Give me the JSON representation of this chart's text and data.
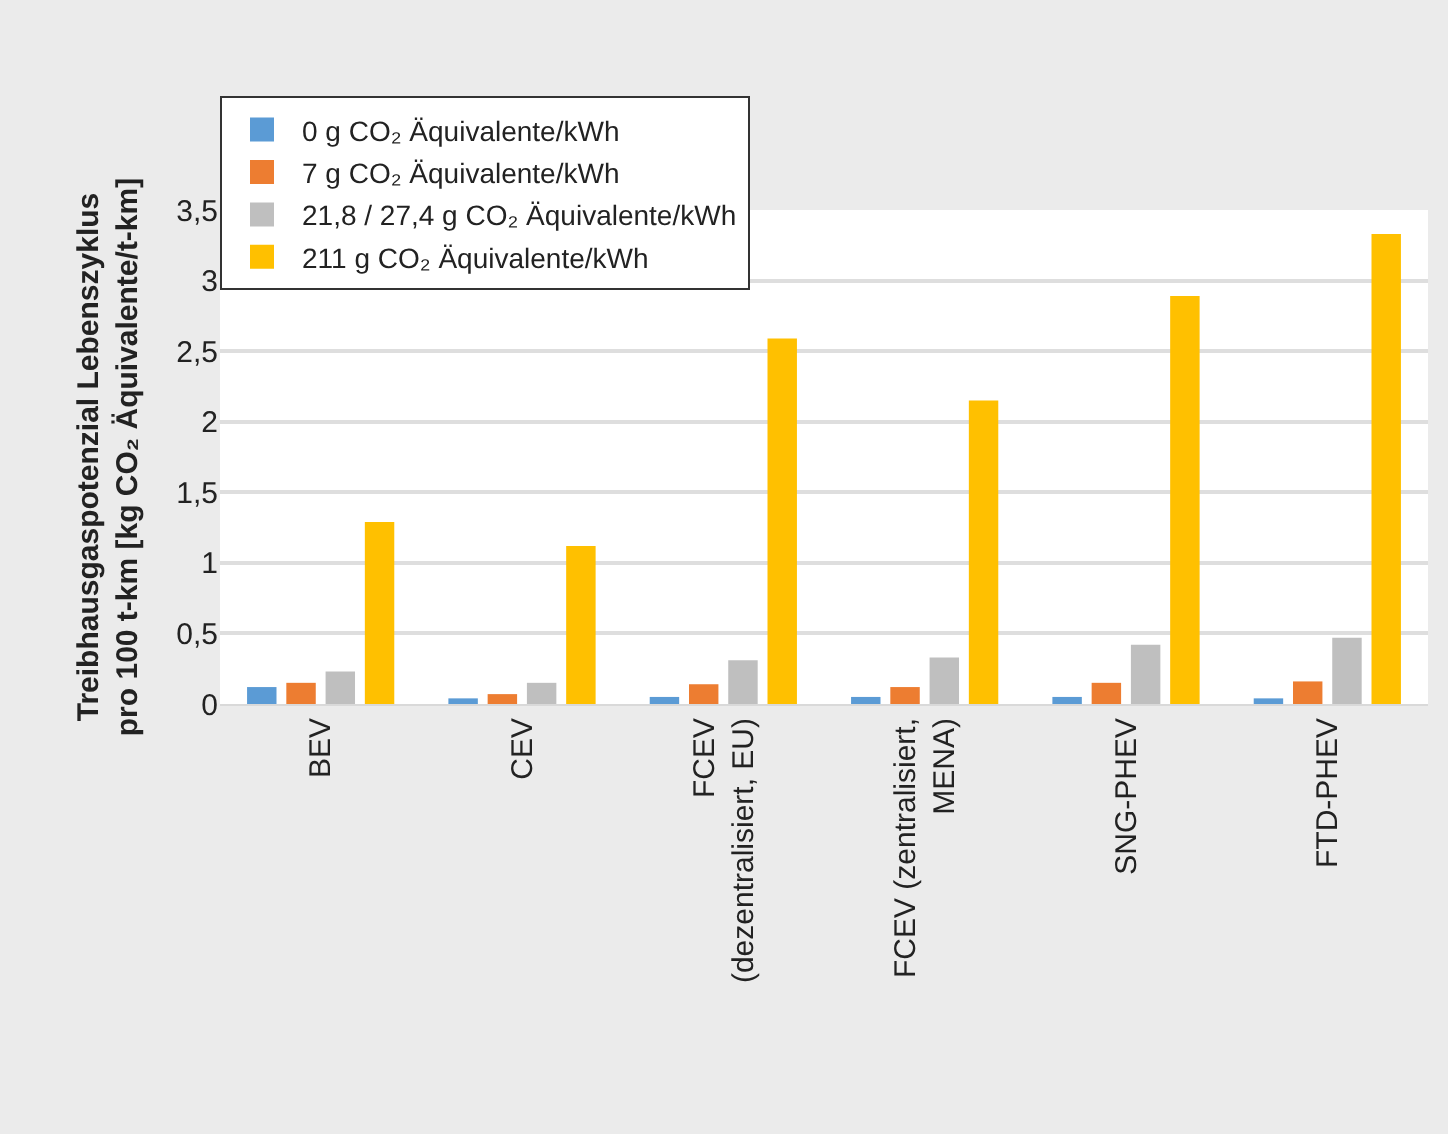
{
  "chart_data": {
    "type": "bar",
    "ylabel": "Treibhausgaspotenzial Lebenszyklus\npro 100 t-km [kg CO₂ Äquivalente/t-km]",
    "categories": [
      "BEV",
      "CEV",
      "FCEV\n(dezentralisiert, EU)",
      "FCEV (zentralisiert,\nMENA)",
      "SNG-PHEV",
      "FTD-PHEV"
    ],
    "series": [
      {
        "name": "0 g CO₂ Äquivalente/kWh",
        "color": "#5b9bd5",
        "values": [
          0.12,
          0.04,
          0.05,
          0.05,
          0.05,
          0.04
        ]
      },
      {
        "name": "7 g CO₂ Äquivalente/kWh",
        "color": "#ed7d31",
        "values": [
          0.15,
          0.07,
          0.14,
          0.12,
          0.15,
          0.16
        ]
      },
      {
        "name": "21,8 / 27,4 g CO₂ Äquivalente/kWh",
        "color": "#bfbfbf",
        "values": [
          0.23,
          0.15,
          0.31,
          0.33,
          0.42,
          0.47
        ]
      },
      {
        "name": "211 g CO₂ Äquivalente/kWh",
        "color": "#ffc000",
        "values": [
          1.29,
          1.12,
          2.59,
          2.15,
          2.89,
          3.33
        ]
      }
    ],
    "ylim": [
      0,
      3.5
    ],
    "yticks": [
      0,
      {
        "value": 0.5,
        "label": "0,5"
      },
      1,
      {
        "value": 1.5,
        "label": "1,5"
      },
      2,
      {
        "value": 2.5,
        "label": "2,5"
      },
      3,
      {
        "value": 3.5,
        "label": "3,5"
      }
    ],
    "grid": "y",
    "legend": "top left"
  }
}
